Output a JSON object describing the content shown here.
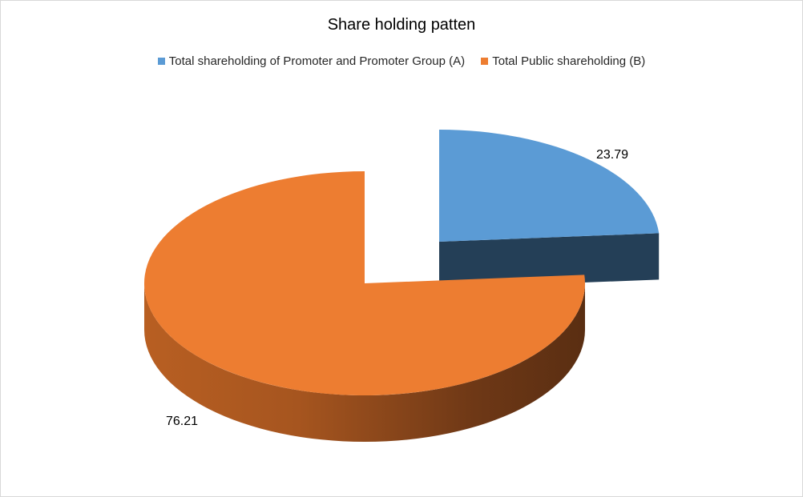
{
  "chart_data": {
    "type": "pie",
    "title": "Share holding patten",
    "categories": [
      "Total shareholding of Promoter and Promoter Group (A)",
      "Total Public shareholding (B)"
    ],
    "values": [
      23.79,
      76.21
    ],
    "data_labels": [
      "23.79",
      "76.21"
    ],
    "colors": [
      "#5b9bd5",
      "#ed7d31"
    ],
    "legend_position": "top",
    "style": "3d-exploded"
  }
}
